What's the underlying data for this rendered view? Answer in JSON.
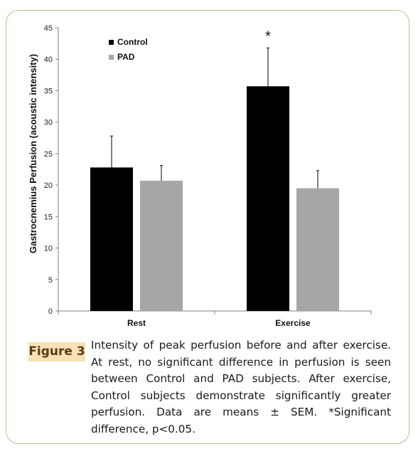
{
  "chart_data": {
    "type": "bar",
    "title": "",
    "xlabel": "",
    "ylabel": "Gastrocnemius Perfusion (acoustic intensity)",
    "categories": [
      "Rest",
      "Exercise"
    ],
    "series": [
      {
        "name": "Control",
        "values": [
          22.8,
          35.7
        ],
        "errors": [
          5.0,
          6.1
        ]
      },
      {
        "name": "PAD",
        "values": [
          20.7,
          19.5
        ],
        "errors": [
          2.4,
          2.8
        ]
      }
    ],
    "ylim": [
      0,
      45
    ],
    "yticks": [
      "0",
      "5",
      "10",
      "15",
      "20",
      "25",
      "30",
      "35",
      "40",
      "45"
    ],
    "annotations": [
      {
        "category": "Exercise",
        "series": "Control",
        "text": "*"
      }
    ],
    "legend_position": "top-left",
    "grid": false,
    "colors": {
      "Control": "#000000",
      "PAD": "#a6a6a6",
      "axis": "#7f7f7f"
    }
  },
  "caption": {
    "badge": "Figure 3",
    "text": "Intensity of peak perfusion before and after exercise. At rest, no significant difference in perfusion is seen between Control and PAD subjects. After exercise, Control subjects demonstrate significantly greater perfusion. Data are means ± SEM. *Significant difference, p<0.05."
  }
}
